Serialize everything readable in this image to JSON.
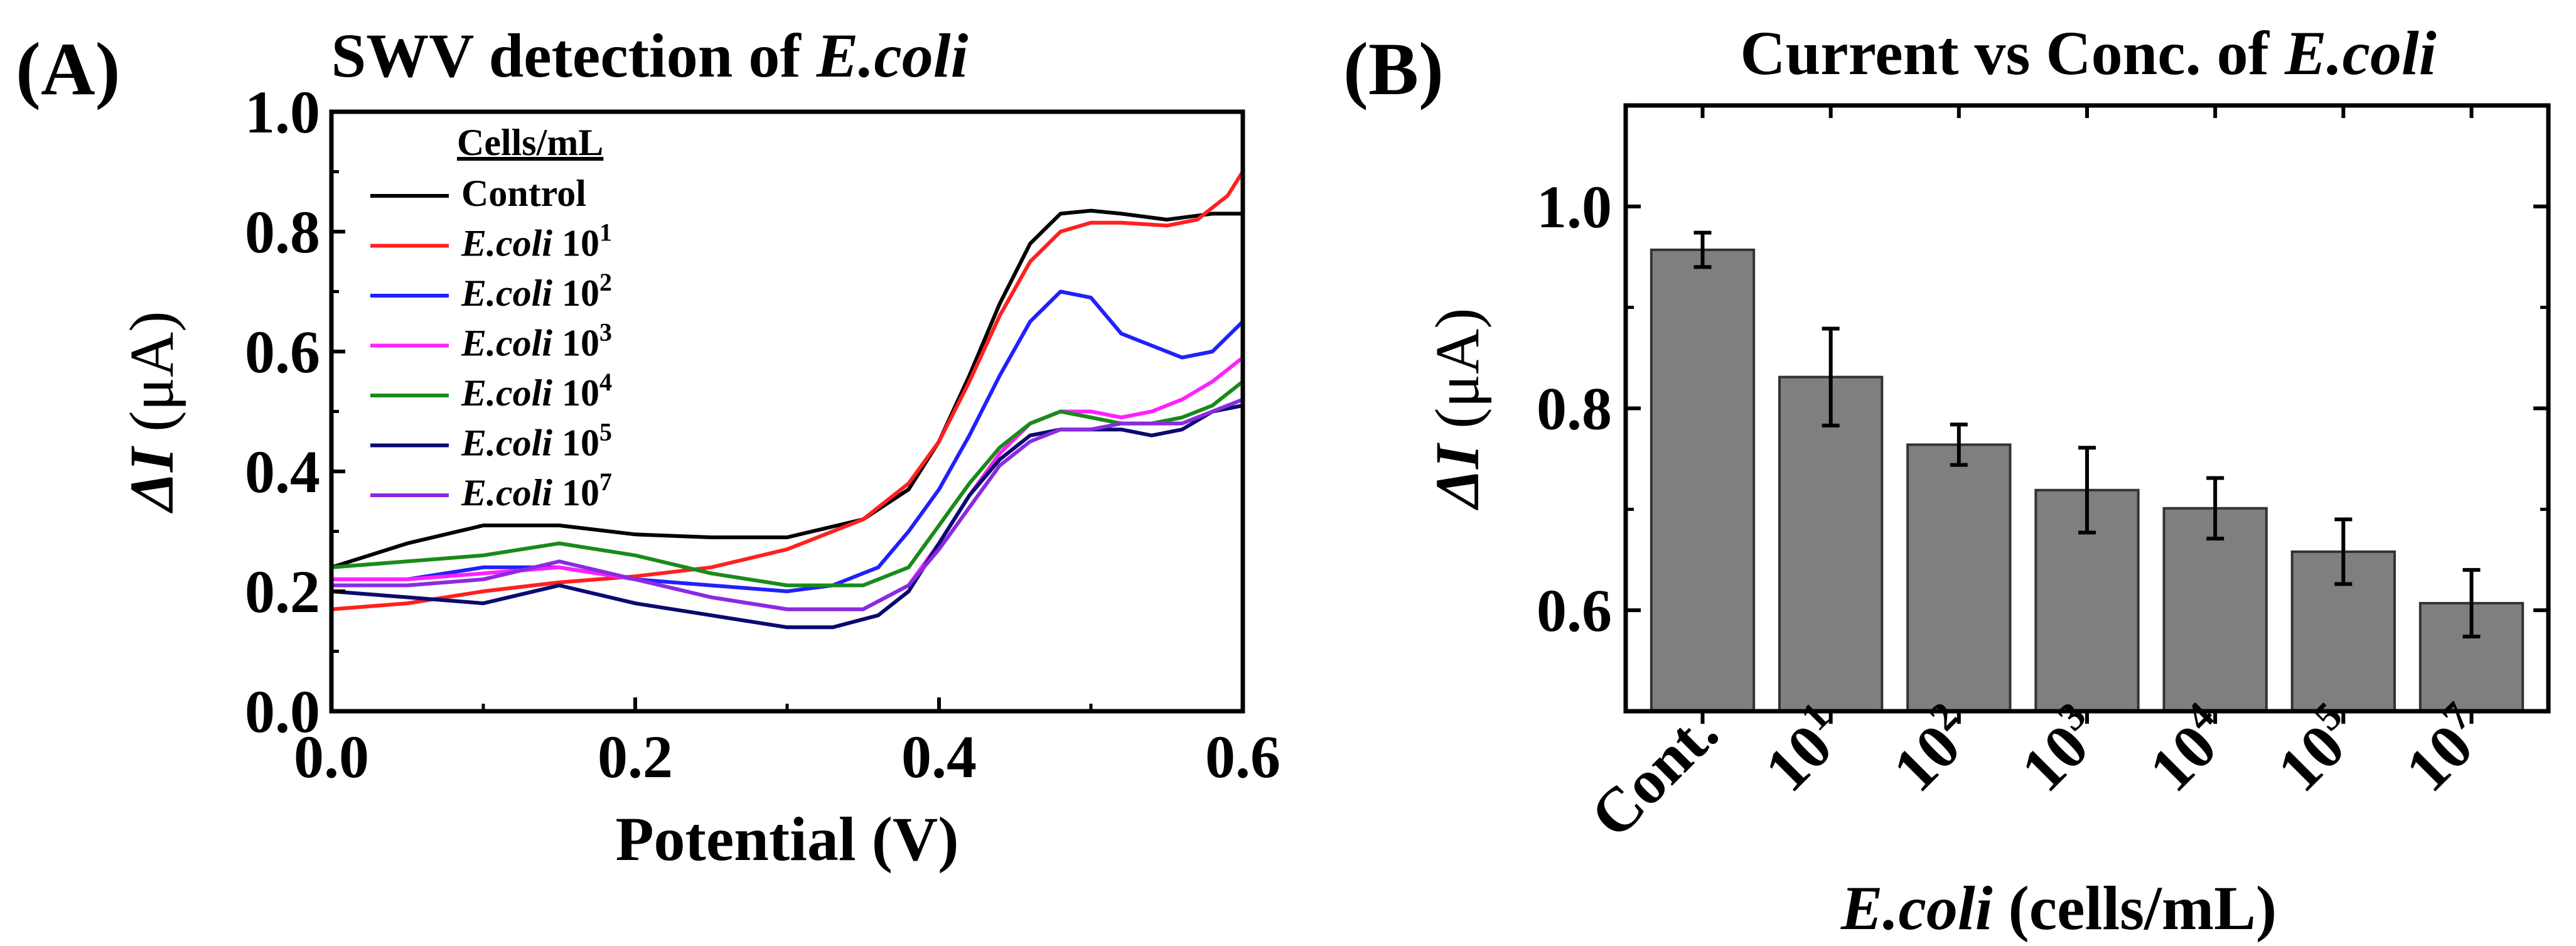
{
  "chart_data": [
    {
      "panel_label": "(A)",
      "type": "line",
      "title": "SWV detection of ",
      "title_italic": "E.coli",
      "xlabel": "Potential (V)",
      "ylabel_symbol": "ΔI",
      "ylabel_unit": " (μA)",
      "xlim": [
        0.0,
        0.6
      ],
      "ylim": [
        0.0,
        1.0
      ],
      "xticks": [
        0.0,
        0.2,
        0.4,
        0.6
      ],
      "xtick_labels": [
        "0.0",
        "0.2",
        "0.4",
        "0.6"
      ],
      "yticks": [
        0.0,
        0.2,
        0.4,
        0.6,
        0.8,
        1.0
      ],
      "ytick_labels": [
        "0.0",
        "0.2",
        "0.4",
        "0.6",
        "0.8",
        "1.0"
      ],
      "legend_title": "Cells/mL",
      "legend_position": "top-left",
      "series": [
        {
          "name": "Control",
          "legend_italic": "",
          "legend_base": "Control",
          "legend_exp": "",
          "color": "#000000",
          "x": [
            0.0,
            0.05,
            0.1,
            0.15,
            0.2,
            0.25,
            0.3,
            0.35,
            0.38,
            0.4,
            0.42,
            0.44,
            0.46,
            0.48,
            0.5,
            0.52,
            0.55,
            0.58,
            0.6
          ],
          "y": [
            0.24,
            0.28,
            0.31,
            0.31,
            0.295,
            0.29,
            0.29,
            0.32,
            0.37,
            0.45,
            0.56,
            0.68,
            0.78,
            0.83,
            0.835,
            0.83,
            0.82,
            0.83,
            0.83
          ]
        },
        {
          "name": "E.coli 10^1",
          "legend_italic": "E.coli",
          "legend_base": " 10",
          "legend_exp": "1",
          "color": "#ff2020",
          "x": [
            0.0,
            0.05,
            0.1,
            0.15,
            0.2,
            0.25,
            0.3,
            0.35,
            0.38,
            0.4,
            0.42,
            0.44,
            0.46,
            0.48,
            0.5,
            0.52,
            0.55,
            0.57,
            0.59,
            0.6
          ],
          "y": [
            0.17,
            0.18,
            0.2,
            0.215,
            0.225,
            0.24,
            0.27,
            0.32,
            0.38,
            0.45,
            0.55,
            0.66,
            0.75,
            0.8,
            0.815,
            0.815,
            0.81,
            0.82,
            0.86,
            0.9
          ]
        },
        {
          "name": "E.coli 10^2",
          "legend_italic": "E.coli",
          "legend_base": " 10",
          "legend_exp": "2",
          "color": "#2020ff",
          "x": [
            0.0,
            0.05,
            0.1,
            0.15,
            0.2,
            0.25,
            0.3,
            0.33,
            0.36,
            0.38,
            0.4,
            0.42,
            0.44,
            0.46,
            0.48,
            0.5,
            0.52,
            0.54,
            0.56,
            0.58,
            0.6
          ],
          "y": [
            0.22,
            0.22,
            0.24,
            0.24,
            0.22,
            0.21,
            0.2,
            0.21,
            0.24,
            0.3,
            0.37,
            0.46,
            0.56,
            0.65,
            0.7,
            0.69,
            0.63,
            0.61,
            0.59,
            0.6,
            0.65
          ]
        },
        {
          "name": "E.coli 10^3",
          "legend_italic": "E.coli",
          "legend_base": " 10",
          "legend_exp": "3",
          "color": "#ff20ff",
          "x": [
            0.0,
            0.05,
            0.1,
            0.15,
            0.2,
            0.25,
            0.3,
            0.35,
            0.38,
            0.4,
            0.42,
            0.44,
            0.46,
            0.48,
            0.5,
            0.52,
            0.54,
            0.56,
            0.58,
            0.6
          ],
          "y": [
            0.22,
            0.22,
            0.23,
            0.24,
            0.22,
            0.19,
            0.17,
            0.17,
            0.21,
            0.28,
            0.36,
            0.43,
            0.48,
            0.5,
            0.5,
            0.49,
            0.5,
            0.52,
            0.55,
            0.59
          ]
        },
        {
          "name": "E.coli 10^4",
          "legend_italic": "E.coli",
          "legend_base": " 10",
          "legend_exp": "4",
          "color": "#1a8a1a",
          "x": [
            0.0,
            0.05,
            0.1,
            0.15,
            0.2,
            0.25,
            0.3,
            0.35,
            0.38,
            0.4,
            0.42,
            0.44,
            0.46,
            0.48,
            0.5,
            0.52,
            0.54,
            0.56,
            0.58,
            0.6
          ],
          "y": [
            0.24,
            0.25,
            0.26,
            0.28,
            0.26,
            0.23,
            0.21,
            0.21,
            0.24,
            0.31,
            0.38,
            0.44,
            0.48,
            0.5,
            0.49,
            0.48,
            0.48,
            0.49,
            0.51,
            0.55
          ]
        },
        {
          "name": "E.coli 10^5",
          "legend_italic": "E.coli",
          "legend_base": " 10",
          "legend_exp": "5",
          "color": "#0a0a70",
          "x": [
            0.0,
            0.05,
            0.1,
            0.15,
            0.2,
            0.25,
            0.3,
            0.33,
            0.36,
            0.38,
            0.4,
            0.42,
            0.44,
            0.46,
            0.48,
            0.5,
            0.52,
            0.54,
            0.56,
            0.58,
            0.6
          ],
          "y": [
            0.2,
            0.19,
            0.18,
            0.21,
            0.18,
            0.16,
            0.14,
            0.14,
            0.16,
            0.2,
            0.28,
            0.36,
            0.42,
            0.46,
            0.47,
            0.47,
            0.47,
            0.46,
            0.47,
            0.5,
            0.51
          ]
        },
        {
          "name": "E.coli 10^7",
          "legend_italic": "E.coli",
          "legend_base": " 10",
          "legend_exp": "7",
          "color": "#8a2be2",
          "x": [
            0.0,
            0.05,
            0.1,
            0.15,
            0.2,
            0.25,
            0.3,
            0.35,
            0.38,
            0.4,
            0.42,
            0.44,
            0.46,
            0.48,
            0.5,
            0.52,
            0.54,
            0.56,
            0.58,
            0.6
          ],
          "y": [
            0.21,
            0.21,
            0.22,
            0.25,
            0.22,
            0.19,
            0.17,
            0.17,
            0.21,
            0.27,
            0.34,
            0.41,
            0.45,
            0.47,
            0.47,
            0.48,
            0.48,
            0.48,
            0.5,
            0.52
          ]
        }
      ]
    },
    {
      "panel_label": "(B)",
      "type": "bar",
      "title": "Current vs Conc. of ",
      "title_italic": "E.coli",
      "xlabel_italic": "E.coli",
      "xlabel_rest": " (cells/mL)",
      "ylabel_symbol": "ΔI",
      "ylabel_unit": " (μA)",
      "ylim": [
        0.5,
        1.1
      ],
      "yticks": [
        0.6,
        0.8,
        1.0
      ],
      "ytick_labels": [
        "0.6",
        "0.8",
        "1.0"
      ],
      "categories": [
        {
          "base": "Cont.",
          "exp": ""
        },
        {
          "base": "10",
          "exp": "1"
        },
        {
          "base": "10",
          "exp": "2"
        },
        {
          "base": "10",
          "exp": "3"
        },
        {
          "base": "10",
          "exp": "4"
        },
        {
          "base": "10",
          "exp": "5"
        },
        {
          "base": "10",
          "exp": "7"
        }
      ],
      "values": [
        0.957,
        0.831,
        0.764,
        0.719,
        0.701,
        0.658,
        0.607
      ],
      "errors": [
        0.017,
        0.048,
        0.02,
        0.042,
        0.03,
        0.032,
        0.033
      ],
      "bar_color": "#7f7f7f"
    }
  ]
}
